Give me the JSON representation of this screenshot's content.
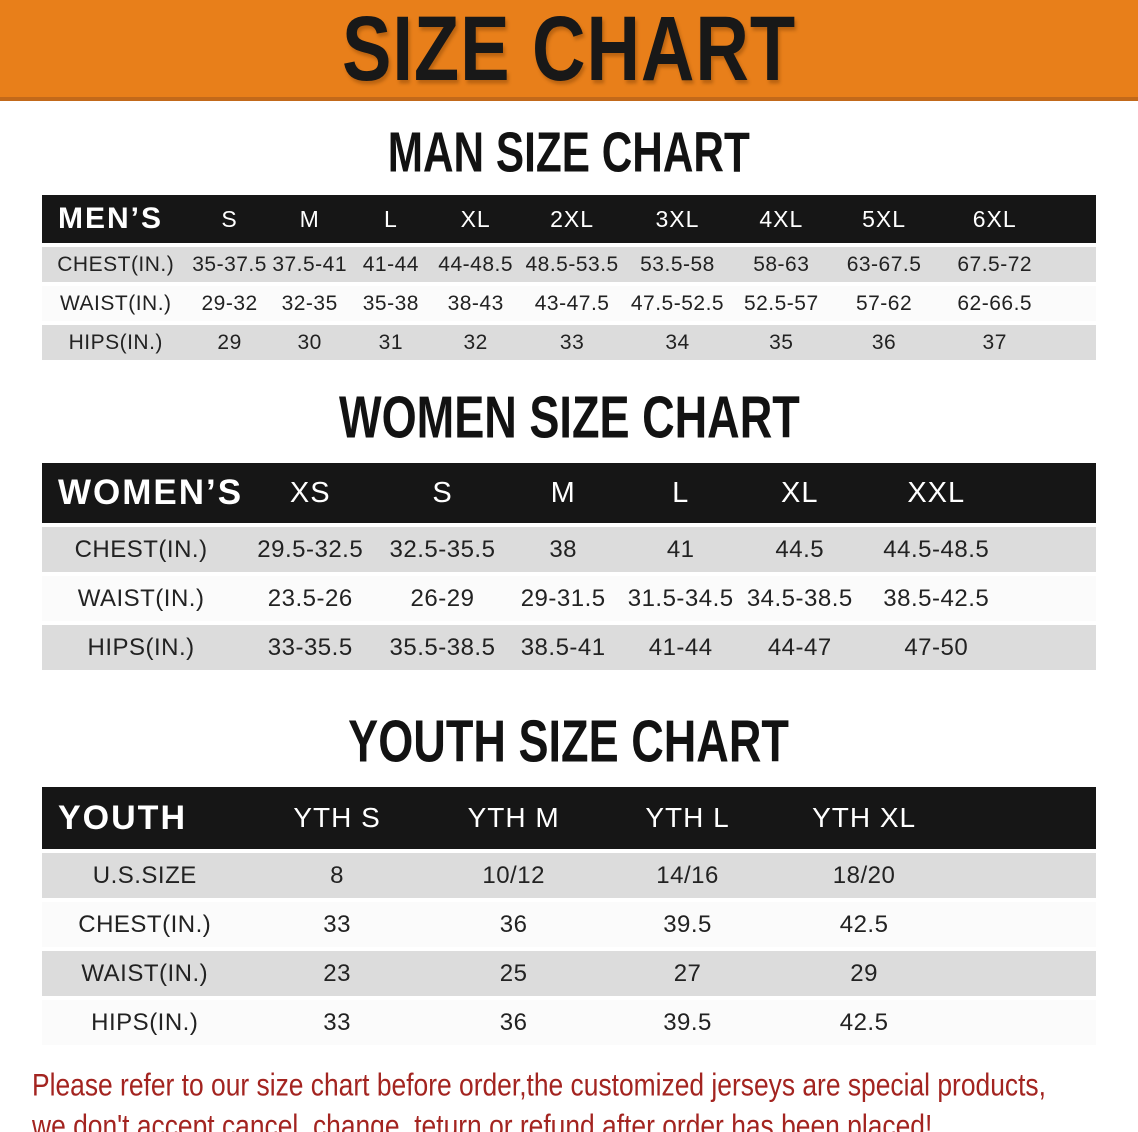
{
  "banner": {
    "title": "SIZE CHART",
    "background_color": "#E87F1A"
  },
  "sections": {
    "men": {
      "heading": "MAN SIZE CHART"
    },
    "women": {
      "heading": "WOMEN SIZE CHART"
    },
    "youth": {
      "heading": "YOUTH SIZE CHART"
    }
  },
  "tables": {
    "men": {
      "corner": "MEN’S",
      "columns": [
        "S",
        "M",
        "L",
        "XL",
        "2XL",
        "3XL",
        "4XL",
        "5XL",
        "6XL"
      ],
      "rows": [
        {
          "label": "CHEST(IN.)",
          "values": [
            "35-37.5",
            "37.5-41",
            "41-44",
            "44-48.5",
            "48.5-53.5",
            "53.5-58",
            "58-63",
            "63-67.5",
            "67.5-72"
          ]
        },
        {
          "label": "WAIST(IN.)",
          "values": [
            "29-32",
            "32-35",
            "35-38",
            "38-43",
            "43-47.5",
            "47.5-52.5",
            "52.5-57",
            "57-62",
            "62-66.5"
          ]
        },
        {
          "label": "HIPS(IN.)",
          "values": [
            "29",
            "30",
            "31",
            "32",
            "33",
            "34",
            "35",
            "36",
            "37"
          ]
        }
      ]
    },
    "women": {
      "corner": "WOMEN’S",
      "columns": [
        "XS",
        "S",
        "M",
        "L",
        "XL",
        "XXL"
      ],
      "rows": [
        {
          "label": "CHEST(IN.)",
          "values": [
            "29.5-32.5",
            "32.5-35.5",
            "38",
            "41",
            "44.5",
            "44.5-48.5"
          ]
        },
        {
          "label": "WAIST(IN.)",
          "values": [
            "23.5-26",
            "26-29",
            "29-31.5",
            "31.5-34.5",
            "34.5-38.5",
            "38.5-42.5"
          ]
        },
        {
          "label": "HIPS(IN.)",
          "values": [
            "33-35.5",
            "35.5-38.5",
            "38.5-41",
            "41-44",
            "44-47",
            "47-50"
          ]
        }
      ]
    },
    "youth": {
      "corner": "YOUTH",
      "columns": [
        "YTH S",
        "YTH M",
        "YTH L",
        "YTH XL"
      ],
      "rows": [
        {
          "label": "U.S.SIZE",
          "values": [
            "8",
            "10/12",
            "14/16",
            "18/20"
          ]
        },
        {
          "label": "CHEST(IN.)",
          "values": [
            "33",
            "36",
            "39.5",
            "42.5"
          ]
        },
        {
          "label": "WAIST(IN.)",
          "values": [
            "23",
            "25",
            "27",
            "29"
          ]
        },
        {
          "label": "HIPS(IN.)",
          "values": [
            "33",
            "36",
            "39.5",
            "42.5"
          ]
        }
      ]
    }
  },
  "disclaimer": {
    "line1": "Please refer to our size chart before order,the customized jerseys are special products,",
    "line2": "we don't accept cancel, change, teturn or refund after order has been placed!",
    "text_color": "#A32420"
  },
  "colors": {
    "banner_orange": "#E87F1A",
    "table_header_black": "#161616",
    "row_stripe_gray": "#DCDCDC",
    "disclaimer_red": "#A32420"
  }
}
